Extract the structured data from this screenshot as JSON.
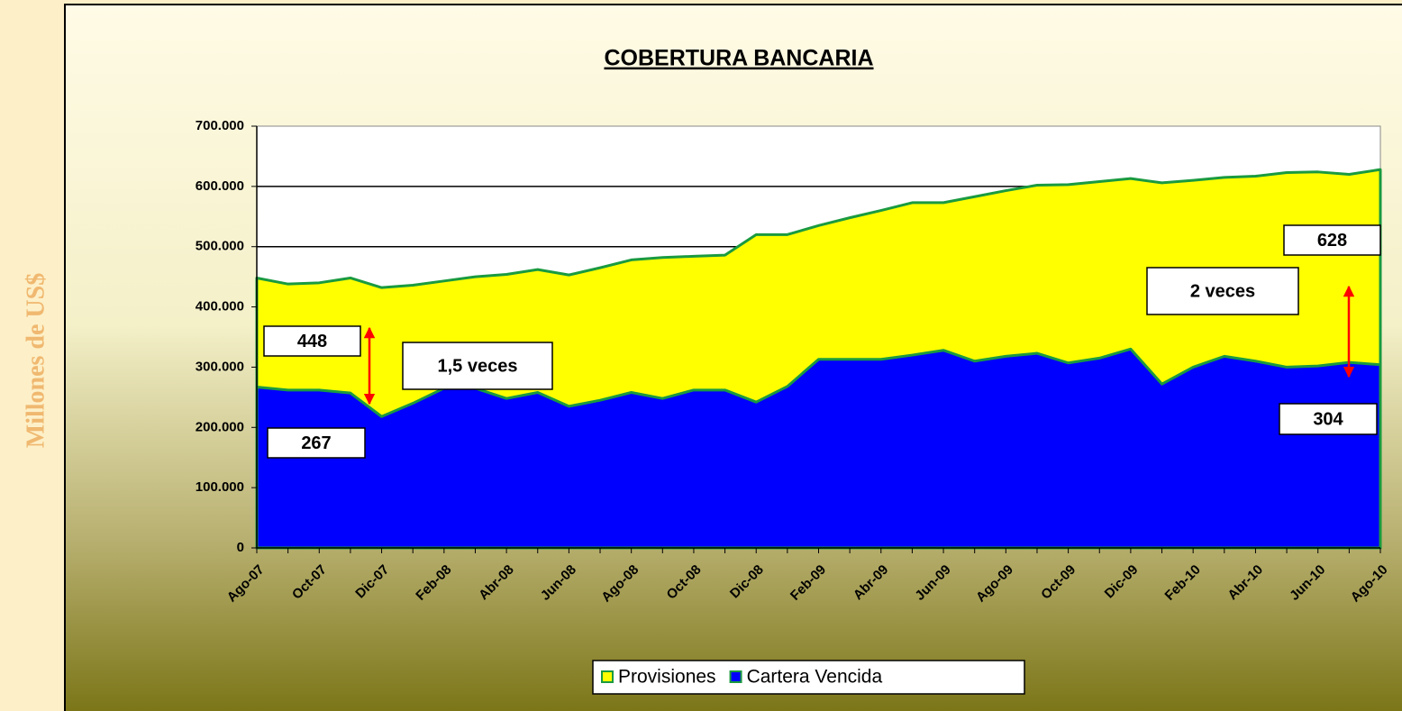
{
  "chart_data": {
    "type": "area",
    "title": "COBERTURA BANCARIA",
    "side_label": "Millones de US$",
    "categories": [
      "Ago-07",
      null,
      "Oct-07",
      null,
      "Dic-07",
      null,
      "Feb-08",
      null,
      "Abr-08",
      null,
      "Jun-08",
      null,
      "Ago-08",
      null,
      "Oct-08",
      null,
      "Dic-08",
      null,
      "Feb-09",
      null,
      "Abr-09",
      null,
      "Jun-09",
      null,
      "Ago-09",
      null,
      "Oct-09",
      null,
      "Dic-09",
      null,
      "Feb-10",
      null,
      "Abr-10",
      null,
      "Jun-10",
      null,
      "Ago-10"
    ],
    "series": [
      {
        "name": "Provisiones",
        "color": "#ffff00",
        "edge": "#1a9a40",
        "values": [
          448000,
          438000,
          440000,
          448000,
          432000,
          436000,
          443000,
          450000,
          454000,
          462000,
          453000,
          465000,
          478000,
          482000,
          484000,
          486000,
          520000,
          520000,
          535000,
          548000,
          560000,
          573000,
          573000,
          583000,
          593000,
          602000,
          603000,
          608000,
          613000,
          606000,
          610000,
          615000,
          617000,
          623000,
          624000,
          620000,
          628000
        ],
        "value_labels": [
          "448",
          null,
          null,
          null,
          null,
          null,
          null,
          null,
          null,
          null,
          null,
          null,
          null,
          null,
          null,
          null,
          null,
          null,
          null,
          null,
          null,
          null,
          null,
          null,
          null,
          null,
          null,
          null,
          null,
          null,
          null,
          null,
          null,
          null,
          null,
          null,
          "628"
        ]
      },
      {
        "name": "Cartera Vencida",
        "color": "#0000ff",
        "edge": "#1a9a40",
        "values": [
          267000,
          262000,
          262000,
          257000,
          218000,
          240000,
          265000,
          265000,
          248000,
          258000,
          235000,
          245000,
          258000,
          248000,
          262000,
          262000,
          242000,
          268000,
          313000,
          313000,
          313000,
          320000,
          328000,
          310000,
          318000,
          323000,
          307000,
          315000,
          330000,
          272000,
          300000,
          318000,
          310000,
          300000,
          302000,
          308000,
          304000
        ],
        "value_labels": [
          "267",
          null,
          null,
          null,
          null,
          null,
          null,
          null,
          null,
          null,
          null,
          null,
          null,
          null,
          null,
          null,
          null,
          null,
          null,
          null,
          null,
          null,
          null,
          null,
          null,
          null,
          null,
          null,
          null,
          null,
          null,
          null,
          null,
          null,
          null,
          null,
          "304"
        ]
      }
    ],
    "annotations": [
      "1,5 veces",
      "2 veces"
    ],
    "ylim": [
      0,
      700000
    ],
    "yticks": [
      0,
      {
        "value": 100000,
        "label": "100.000"
      },
      {
        "value": 200000,
        "label": "200.000"
      },
      {
        "value": 300000,
        "label": "300.000"
      },
      {
        "value": 400000,
        "label": "400.000"
      },
      {
        "value": 500000,
        "label": "500.000"
      },
      {
        "value": 600000,
        "label": "600.000"
      },
      {
        "value": 700000,
        "label": "700.000"
      }
    ],
    "grid": true,
    "legend": "bottom"
  }
}
